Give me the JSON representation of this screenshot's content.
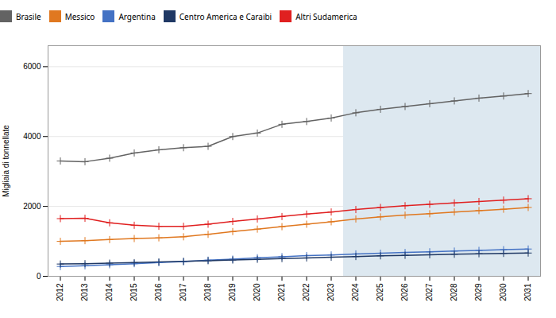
{
  "chart_data": {
    "type": "line",
    "x": [
      2012,
      2013,
      2014,
      2015,
      2016,
      2017,
      2018,
      2019,
      2020,
      2021,
      2022,
      2023,
      2024,
      2025,
      2026,
      2027,
      2028,
      2029,
      2030,
      2031
    ],
    "xlim": [
      2011.5,
      2031.5
    ],
    "xticks": [
      2012,
      2013,
      2014,
      2015,
      2016,
      2017,
      2018,
      2019,
      2020,
      2021,
      2022,
      2023,
      2024,
      2025,
      2026,
      2027,
      2028,
      2029,
      2030,
      2031
    ],
    "series": [
      {
        "name": "Brasile",
        "color": "#636363",
        "values": [
          3300,
          3280,
          3380,
          3530,
          3620,
          3680,
          3720,
          4000,
          4100,
          4350,
          4430,
          4530,
          4680,
          4780,
          4860,
          4940,
          5020,
          5100,
          5160,
          5230
        ]
      },
      {
        "name": "Messico",
        "color": "#E07820",
        "values": [
          1000,
          1020,
          1050,
          1080,
          1100,
          1130,
          1200,
          1280,
          1350,
          1420,
          1490,
          1560,
          1640,
          1700,
          1750,
          1790,
          1840,
          1880,
          1920,
          1970
        ]
      },
      {
        "name": "Argentina",
        "color": "#4472C4",
        "values": [
          280,
          300,
          330,
          360,
          390,
          420,
          460,
          490,
          530,
          560,
          590,
          610,
          640,
          660,
          680,
          700,
          720,
          740,
          760,
          780
        ]
      },
      {
        "name": "Centro America e Caraibi",
        "color": "#1F3864",
        "values": [
          350,
          360,
          375,
          390,
          410,
          425,
          445,
          465,
          485,
          505,
          525,
          545,
          565,
          585,
          600,
          615,
          630,
          645,
          655,
          665
        ]
      },
      {
        "name": "Altri Sudamerica",
        "color": "#E02020",
        "values": [
          1650,
          1660,
          1530,
          1460,
          1430,
          1430,
          1490,
          1570,
          1640,
          1710,
          1780,
          1840,
          1910,
          1970,
          2020,
          2060,
          2100,
          2140,
          2180,
          2220
        ]
      }
    ],
    "ylabel": "Migliaia di tonnellate",
    "ylim": [
      0,
      6600
    ],
    "yticks": [
      0,
      2000,
      4000,
      6000
    ],
    "grid": "y",
    "marker": "plus",
    "legend": "top",
    "shaded_x": [
      2023.5,
      2031.5
    ],
    "shaded_color": "#dde8f0"
  }
}
